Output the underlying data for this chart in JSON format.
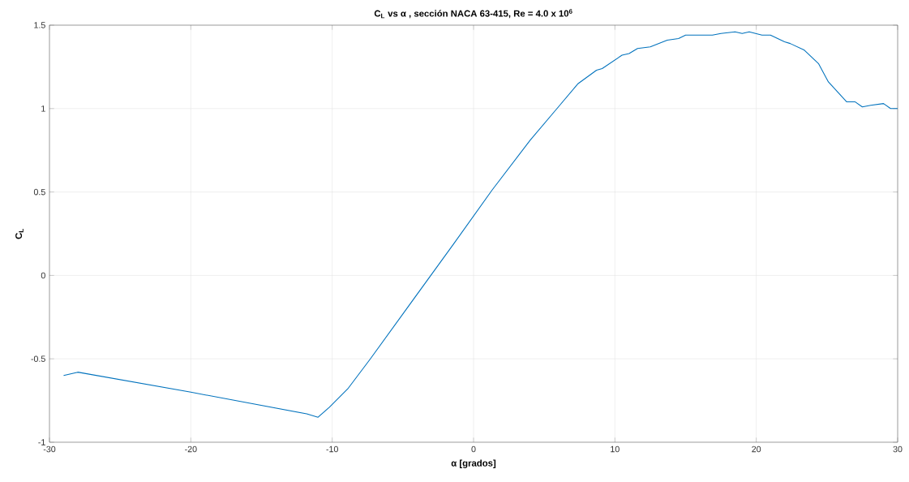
{
  "chart_data": {
    "type": "line",
    "title": "C$_{L}$  vs α , sección NACA 63-415,  Re  = 4.0 x 10$^{6}$",
    "xlabel": "α  [grados]",
    "ylabel": "C$_{L}$",
    "xlim": [
      -30,
      30
    ],
    "ylim": [
      -1,
      1.5
    ],
    "xticks": [
      -30,
      -20,
      -10,
      0,
      10,
      20,
      30
    ],
    "yticks": [
      -1,
      -0.5,
      0,
      0.5,
      1,
      1.5
    ],
    "grid": true,
    "x": [
      -29,
      -28,
      -20,
      -11.8,
      -11,
      -10.2,
      -8.9,
      -7.3,
      -1.4,
      1.3,
      4,
      6,
      7.4,
      8.7,
      9.1,
      10.5,
      11,
      11.6,
      12.5,
      13.7,
      14.5,
      15,
      16.9,
      17.5,
      18.5,
      19,
      19.5,
      20.4,
      21,
      22,
      22.4,
      23.4,
      24.4,
      25.1,
      26.4,
      27,
      27.5,
      28.1,
      29,
      29.5,
      30
    ],
    "series": [
      {
        "color": "#0072bd",
        "values": [
          -0.6,
          -0.58,
          -0.7,
          -0.83,
          -0.85,
          -0.79,
          -0.68,
          -0.5,
          0.19,
          0.51,
          0.81,
          1.01,
          1.15,
          1.23,
          1.24,
          1.32,
          1.33,
          1.36,
          1.37,
          1.41,
          1.42,
          1.44,
          1.44,
          1.45,
          1.46,
          1.45,
          1.46,
          1.44,
          1.44,
          1.4,
          1.39,
          1.35,
          1.27,
          1.16,
          1.04,
          1.04,
          1.01,
          1.02,
          1.03,
          1.0,
          1.0
        ]
      }
    ]
  }
}
